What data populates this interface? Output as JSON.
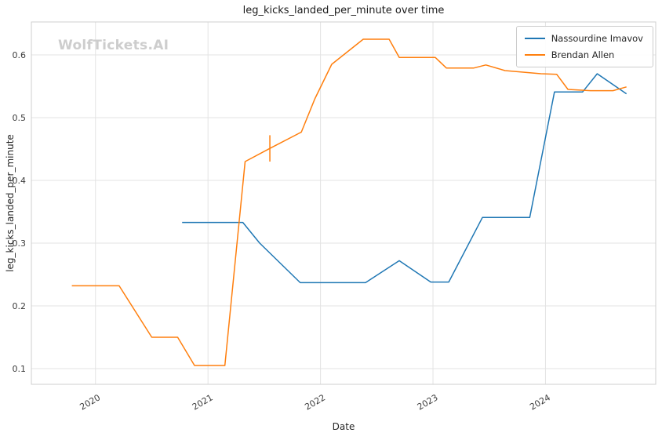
{
  "watermark": "WolfTickets.AI",
  "chart_data": {
    "type": "line",
    "title": "leg_kicks_landed_per_minute over time",
    "xlabel": "Date",
    "ylabel": "leg_kicks_landed_per_minute",
    "grid": true,
    "legend_position": "upper right",
    "xlim": [
      2019.43,
      2024.98
    ],
    "ylim": [
      0.075,
      0.6525
    ],
    "x_ticks": [
      2020,
      2021,
      2022,
      2023,
      2024
    ],
    "x_tick_labels": [
      "2020",
      "2021",
      "2022",
      "2023",
      "2024"
    ],
    "y_ticks": [
      0.1,
      0.2,
      0.3,
      0.4,
      0.5,
      0.6
    ],
    "y_tick_labels": [
      "0.1",
      "0.2",
      "0.3",
      "0.4",
      "0.5",
      "0.6"
    ],
    "colors": {
      "grid": "#e3e3e3",
      "spine": "#cfcfcf",
      "tick_text": "#3b3b3b",
      "watermark": "#cdcdcd",
      "imavov_blue": "#1f77b4",
      "allen_orange": "#ff7f0e"
    },
    "series": [
      {
        "name": "Nassourdine Imavov",
        "color": "#1f77b4",
        "points": [
          [
            2020.77,
            0.333
          ],
          [
            2021.31,
            0.333
          ],
          [
            2021.46,
            0.3
          ],
          [
            2021.82,
            0.237
          ],
          [
            2022.4,
            0.237
          ],
          [
            2022.7,
            0.272
          ],
          [
            2022.98,
            0.238
          ],
          [
            2023.14,
            0.238
          ],
          [
            2023.44,
            0.341
          ],
          [
            2023.86,
            0.341
          ],
          [
            2024.08,
            0.541
          ],
          [
            2024.33,
            0.541
          ],
          [
            2024.46,
            0.57
          ],
          [
            2024.72,
            0.538
          ]
        ]
      },
      {
        "name": "Brendan Allen",
        "color": "#ff7f0e",
        "points": [
          [
            2019.79,
            0.232
          ],
          [
            2020.21,
            0.232
          ],
          [
            2020.5,
            0.15
          ],
          [
            2020.73,
            0.15
          ],
          [
            2020.88,
            0.105
          ],
          [
            2021.15,
            0.105
          ],
          [
            2021.33,
            0.43
          ],
          [
            2021.55,
            0.451
          ],
          [
            2021.83,
            0.477
          ],
          [
            2021.95,
            0.53
          ],
          [
            2022.1,
            0.585
          ],
          [
            2022.38,
            0.625
          ],
          [
            2022.61,
            0.625
          ],
          [
            2022.7,
            0.596
          ],
          [
            2023.02,
            0.596
          ],
          [
            2023.12,
            0.579
          ],
          [
            2023.36,
            0.579
          ],
          [
            2023.47,
            0.584
          ],
          [
            2023.64,
            0.575
          ],
          [
            2023.96,
            0.57
          ],
          [
            2024.1,
            0.569
          ],
          [
            2024.2,
            0.545
          ],
          [
            2024.4,
            0.543
          ],
          [
            2024.6,
            0.543
          ],
          [
            2024.72,
            0.549
          ]
        ],
        "error_bar": {
          "x": 2021.55,
          "y": 0.451,
          "yerr": 0.021
        }
      }
    ]
  }
}
